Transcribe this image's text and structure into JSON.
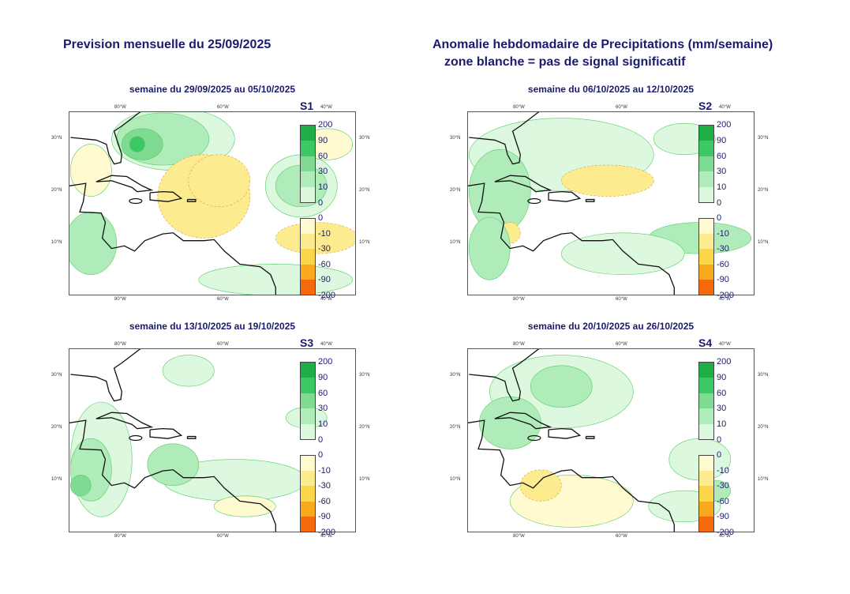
{
  "header": {
    "left_title": "Prevision mensuelle du 25/09/2025",
    "right_title_line1": "Anomalie hebdomadaire de Precipitations (mm/semaine)",
    "right_title_line2": "zone blanche = pas de signal significatif"
  },
  "axes": {
    "lon_ticks": [
      "80°W",
      "60°W",
      "40°W"
    ],
    "lat_ticks": [
      "30°N",
      "20°N",
      "10°N"
    ]
  },
  "legend": {
    "positive_labels": [
      "200",
      "90",
      "60",
      "30",
      "10",
      "0"
    ],
    "negative_labels": [
      "0",
      "-10",
      "-30",
      "-60",
      "-90",
      "-200"
    ],
    "positive_colors": [
      "#1fae45",
      "#3cc864",
      "#7fdb91",
      "#b0ecb9",
      "#dcf8df"
    ],
    "negative_colors": [
      "#fffad0",
      "#fdeb8f",
      "#fbd54a",
      "#f8aa1c",
      "#f66a0e"
    ]
  },
  "panels": [
    {
      "label": "S1",
      "title": "semaine du 29/09/2025 au 05/10/2025"
    },
    {
      "label": "S2",
      "title": "semaine du 06/10/2025 au 12/10/2025"
    },
    {
      "label": "S3",
      "title": "semaine du 13/10/2025 au 19/10/2025"
    },
    {
      "label": "S4",
      "title": "semaine du 20/10/2025 au 26/10/2025"
    }
  ]
}
